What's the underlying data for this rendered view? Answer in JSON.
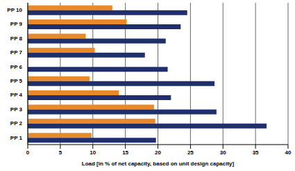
{
  "chart_data": {
    "type": "bar",
    "orientation": "horizontal",
    "x_label": "Load [in % of net capacity, based on unit design capacity]",
    "categories": [
      "PP 10",
      "PP 9",
      "PP 8",
      "PP 7",
      "PP 6",
      "PP 5",
      "PP 4",
      "PP 3",
      "PP 2",
      "PP 1"
    ],
    "series": [
      {
        "color": "#e8892a",
        "values": [
          13,
          15.2,
          8.9,
          10.3,
          null,
          9.5,
          14,
          19.4,
          19.6,
          9.8
        ]
      },
      {
        "color": "#1f2f6b",
        "values": [
          24.5,
          23.5,
          21.2,
          18,
          21.5,
          28.7,
          22,
          29,
          36.7,
          19.7
        ]
      }
    ],
    "xlim": [
      0,
      40
    ],
    "xticks": [
      0,
      5,
      10,
      15,
      20,
      25,
      30,
      35,
      40
    ],
    "grid": true
  }
}
